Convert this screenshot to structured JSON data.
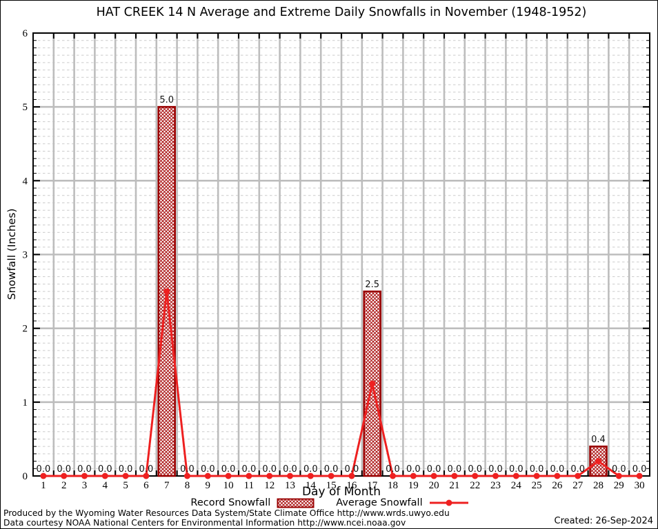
{
  "chart_data": {
    "type": "bar",
    "combo_types": [
      "bar",
      "line"
    ],
    "title": "HAT CREEK 14 N Average and Extreme Daily Snowfalls in November (1948-1952)",
    "xlabel": "Day of Month",
    "ylabel": "Snowfall (Inches)",
    "categories": [
      1,
      2,
      3,
      4,
      5,
      6,
      7,
      8,
      9,
      10,
      11,
      12,
      13,
      14,
      15,
      16,
      17,
      18,
      19,
      20,
      21,
      22,
      23,
      24,
      25,
      26,
      27,
      28,
      29,
      30
    ],
    "series": [
      {
        "name": "Record Snowfall",
        "type": "bar",
        "color": "#990000",
        "fill": "red-crosshatch",
        "values": [
          0,
          0,
          0,
          0,
          0,
          0,
          5.0,
          0,
          0,
          0,
          0,
          0,
          0,
          0,
          0,
          0,
          2.5,
          0,
          0,
          0,
          0,
          0,
          0,
          0,
          0,
          0,
          0,
          0.4,
          0,
          0
        ]
      },
      {
        "name": "Average Snowfall",
        "type": "line",
        "color": "#ee2020",
        "marker": "filled-dot",
        "values": [
          0,
          0,
          0,
          0,
          0,
          0,
          2.5,
          0,
          0,
          0,
          0,
          0,
          0,
          0,
          0,
          0,
          1.25,
          0,
          0,
          0,
          0,
          0,
          0,
          0,
          0,
          0,
          0,
          0.2,
          0,
          0
        ]
      }
    ],
    "value_labels": [
      "0.0",
      "0.0",
      "0.0",
      "0.0",
      "0.0",
      "0.0",
      "5.0",
      "0.0",
      "0.0",
      "0.0",
      "0.0",
      "0.0",
      "0.0",
      "0.0",
      "0.0",
      "0.0",
      "2.5",
      "0.0",
      "0.0",
      "0.0",
      "0.0",
      "0.0",
      "0.0",
      "0.0",
      "0.0",
      "0.0",
      "0.0",
      "0.4",
      "0.0",
      "0.0"
    ],
    "ylim": [
      0,
      6
    ],
    "y_tick_labels": [
      "0",
      "1",
      "2",
      "3",
      "4",
      "5",
      "6"
    ],
    "y_major_step": 1,
    "y_minor_step": 0.1,
    "grid": {
      "horizontal_major": "solid",
      "horizontal_minor": "dashed",
      "vertical": "solid at day boundaries"
    },
    "legend_position": "bottom-center",
    "colors": {
      "bar_border": "#990000",
      "bar_hatch": "#aa1111",
      "line": "#ee2020",
      "grid_major": "#bdbdbd",
      "grid_minor": "#cbcbcb",
      "frame": "#000000",
      "label_text": "#111111"
    }
  },
  "footer": {
    "line1": "Produced by the Wyoming Water Resources Data System/State Climate Office http://www.wrds.uwyo.edu",
    "line2": "Data courtesy NOAA National Centers for Environmental Information http://www.ncei.noaa.gov",
    "created": "Created: 26-Sep-2024"
  }
}
